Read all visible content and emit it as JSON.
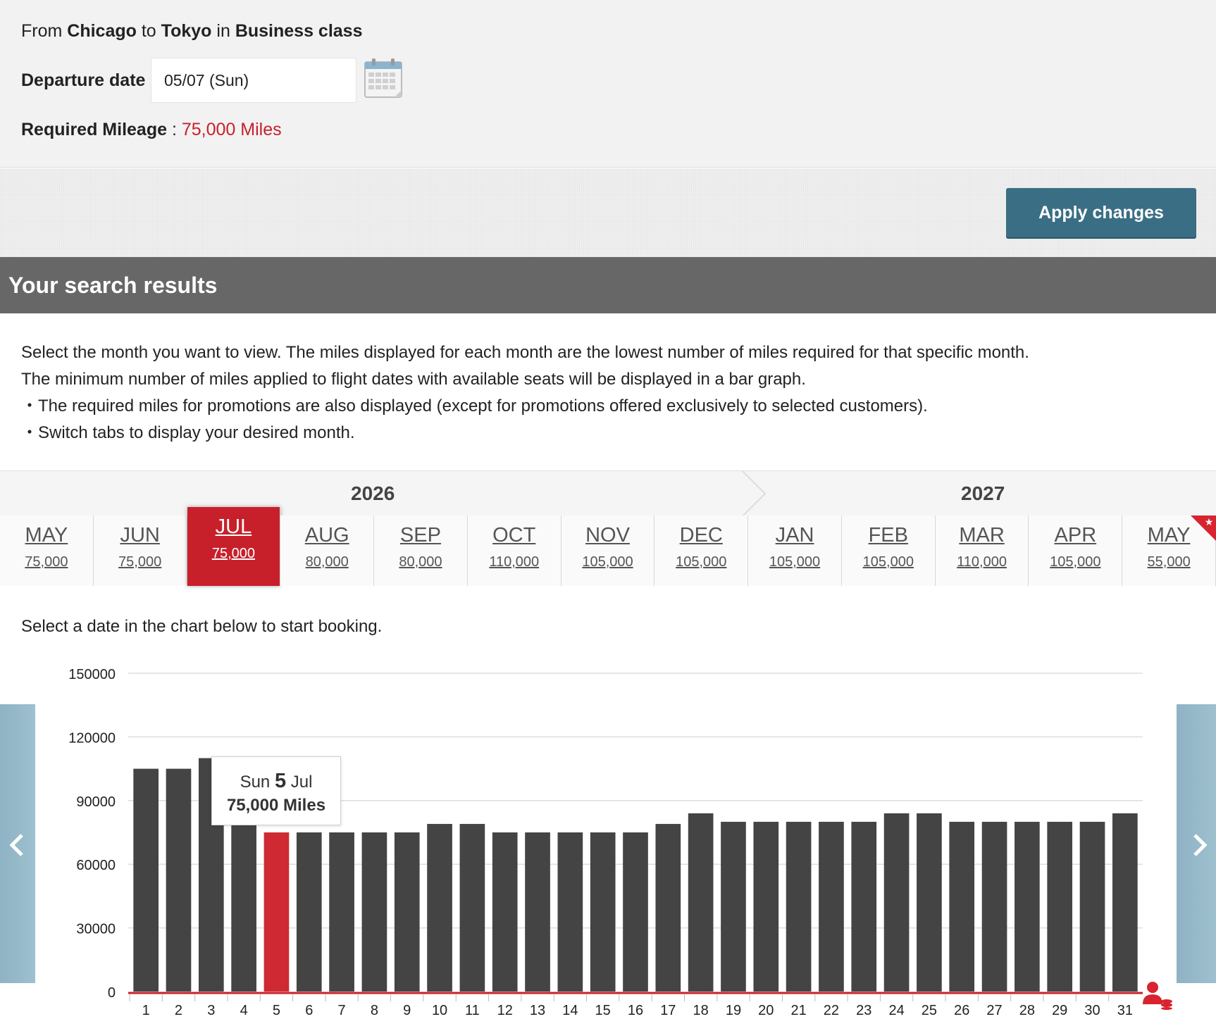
{
  "search": {
    "from_prefix": "From",
    "origin": "Chicago",
    "to_word": "to",
    "destination": "Tokyo",
    "in_word": "in",
    "cabin": "Business class",
    "departure_label": "Departure date",
    "departure_value": "05/07 (Sun)",
    "mileage_label": "Required Mileage",
    "mileage_sep": " : ",
    "mileage_value": "75,000 Miles",
    "apply_label": "Apply changes"
  },
  "results": {
    "title": "Your search results",
    "desc": [
      "Select the month you want to view. The miles displayed for each month are the lowest number of miles required for that specific month.",
      "The minimum number of miles applied to flight dates with available seats will be displayed in a bar graph.",
      "・The required miles for promotions are also displayed (except for promotions offered exclusively to selected customers).",
      "・Switch tabs to display your desired month."
    ],
    "hint": "Select a date in the chart below to start booking."
  },
  "years": [
    "2026",
    "2027"
  ],
  "months": [
    {
      "m": "MAY",
      "v": "75,000"
    },
    {
      "m": "JUN",
      "v": "75,000"
    },
    {
      "m": "JUL",
      "v": "75,000",
      "active": true
    },
    {
      "m": "AUG",
      "v": "80,000"
    },
    {
      "m": "SEP",
      "v": "80,000"
    },
    {
      "m": "OCT",
      "v": "110,000"
    },
    {
      "m": "NOV",
      "v": "105,000"
    },
    {
      "m": "DEC",
      "v": "105,000"
    },
    {
      "m": "JAN",
      "v": "105,000"
    },
    {
      "m": "FEB",
      "v": "105,000"
    },
    {
      "m": "MAR",
      "v": "110,000"
    },
    {
      "m": "APR",
      "v": "105,000"
    },
    {
      "m": "MAY",
      "v": "55,000",
      "promo": true
    }
  ],
  "tooltip": {
    "day_name": "Sun",
    "day_num": "5",
    "month": "Jul",
    "miles": "75,000 Miles"
  },
  "chart_data": {
    "type": "bar",
    "categories": [
      "1",
      "2",
      "3",
      "4",
      "5",
      "6",
      "7",
      "8",
      "9",
      "10",
      "11",
      "12",
      "13",
      "14",
      "15",
      "16",
      "17",
      "18",
      "19",
      "20",
      "21",
      "22",
      "23",
      "24",
      "25",
      "26",
      "27",
      "28",
      "29",
      "30",
      "31"
    ],
    "values": [
      105000,
      105000,
      110000,
      110000,
      75000,
      75000,
      75000,
      75000,
      75000,
      79000,
      79000,
      75000,
      75000,
      75000,
      75000,
      75000,
      79000,
      84000,
      80000,
      80000,
      80000,
      80000,
      80000,
      84000,
      84000,
      80000,
      80000,
      80000,
      80000,
      80000,
      84000
    ],
    "selected_index": 4,
    "yticks": [
      "0",
      "30000",
      "60000",
      "90000",
      "120000",
      "150000"
    ],
    "ylim": [
      0,
      150000
    ],
    "grid": true,
    "colors": {
      "bar": "#444444",
      "selected": "#cf2a33",
      "axis": "#c8202b",
      "grid": "#dddddd"
    }
  }
}
